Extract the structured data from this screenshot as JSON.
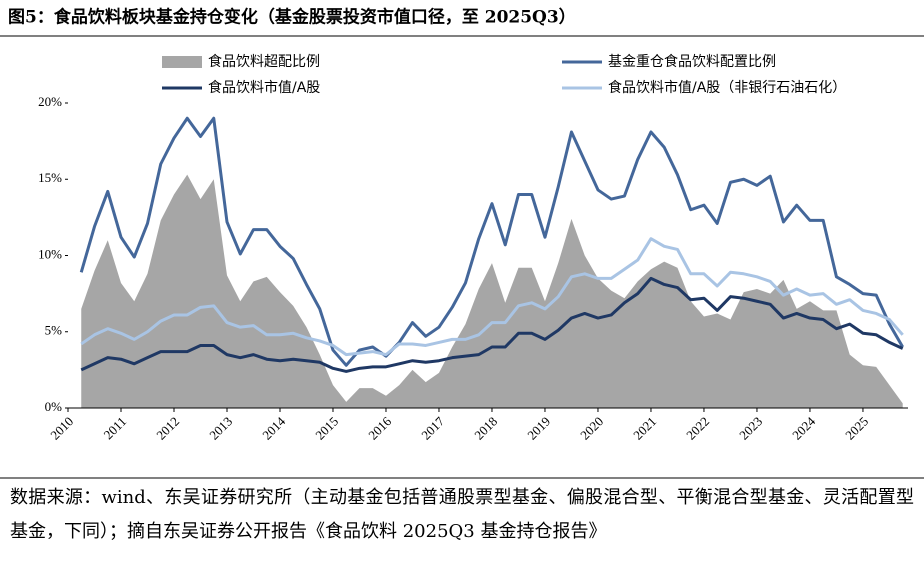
{
  "chart_data": {
    "type": "area-line",
    "title": "图5：食品饮料板块基金持仓变化（基金股票投资市值口径，至 2025Q3）",
    "note": "数据来源：wind、东吴证券研究所（主动基金包括普通股票型基金、偏股混合型、平衡混合型基金、灵活配置型基金，下同）；摘自东吴证券公开报告《食品饮料 2025Q3 基金持仓报告》",
    "x": [
      2010.25,
      2010.5,
      2010.75,
      2011,
      2011.25,
      2011.5,
      2011.75,
      2012,
      2012.25,
      2012.5,
      2012.75,
      2013,
      2013.25,
      2013.5,
      2013.75,
      2014,
      2014.25,
      2014.5,
      2014.75,
      2015,
      2015.25,
      2015.5,
      2015.75,
      2016,
      2016.25,
      2016.5,
      2016.75,
      2017,
      2017.25,
      2017.5,
      2017.75,
      2018,
      2018.25,
      2018.5,
      2018.75,
      2019,
      2019.25,
      2019.5,
      2019.75,
      2020,
      2020.25,
      2020.5,
      2020.75,
      2021,
      2021.25,
      2021.5,
      2021.75,
      2022,
      2022.25,
      2022.5,
      2022.75,
      2023,
      2023.25,
      2023.5,
      2023.75,
      2024,
      2024.25,
      2024.5,
      2024.75,
      2025,
      2025.25,
      2025.5,
      2025.75
    ],
    "xlim": [
      2010,
      2025.85
    ],
    "xticks": [
      2010,
      2011,
      2012,
      2013,
      2014,
      2015,
      2016,
      2017,
      2018,
      2019,
      2020,
      2021,
      2022,
      2023,
      2024,
      2025
    ],
    "ylim": [
      0,
      20
    ],
    "yticks": [
      {
        "value": 0,
        "label": "0%"
      },
      {
        "value": 5,
        "label": "5%"
      },
      {
        "value": 10,
        "label": "10%"
      },
      {
        "value": 15,
        "label": "15%"
      },
      {
        "value": 20,
        "label": "20%"
      }
    ],
    "grid": false,
    "series": [
      {
        "name": "食品饮料超配比例",
        "kind": "area",
        "color": "#a6a6a6",
        "values": [
          6.5,
          9,
          11,
          8.2,
          7.0,
          8.8,
          12.3,
          14,
          15.3,
          13.7,
          15,
          8.7,
          7,
          8.3,
          8.6,
          7.6,
          6.7,
          5.3,
          3.5,
          1.5,
          0.4,
          1.3,
          1.3,
          0.8,
          1.5,
          2.5,
          1.7,
          2.3,
          4.0,
          5.5,
          7.8,
          9.5,
          6.9,
          9.2,
          9.2,
          7,
          9.5,
          12.4,
          10,
          8.5,
          7.7,
          7.2,
          8.3,
          9.1,
          9.6,
          9.2,
          7,
          6,
          6.2,
          5.8,
          7.6,
          7.8,
          7.5,
          8.4,
          6.5,
          7,
          6.4,
          6.4,
          3.5,
          2.8,
          2.7,
          1.5,
          0.3
        ]
      },
      {
        "name": "基金重仓食品饮料配置比例",
        "kind": "line",
        "color": "#44679a",
        "values": [
          8.9,
          11.9,
          14.2,
          11.2,
          9.9,
          12.1,
          16,
          17.7,
          19,
          17.8,
          19,
          12.2,
          10.1,
          11.7,
          11.7,
          10.6,
          9.8,
          8.1,
          6.5,
          3.8,
          2.8,
          3.8,
          4.0,
          3.4,
          4.3,
          5.6,
          4.7,
          5.3,
          6.6,
          8.2,
          11.1,
          13.4,
          10.7,
          14,
          14,
          11.2,
          14.5,
          18.1,
          16.2,
          14.3,
          13.7,
          13.9,
          16.3,
          18.1,
          17.1,
          15.3,
          13,
          13.3,
          12.1,
          14.8,
          15,
          14.6,
          15.2,
          12.2,
          13.3,
          12.3,
          12.3,
          8.6,
          8.1,
          7.5,
          7.4,
          5.5,
          4.0
        ]
      },
      {
        "name": "食品饮料市值/A股",
        "kind": "line",
        "color": "#1f3864",
        "values": [
          2.5,
          2.9,
          3.3,
          3.2,
          2.9,
          3.3,
          3.7,
          3.7,
          3.7,
          4.1,
          4.1,
          3.5,
          3.3,
          3.5,
          3.2,
          3.1,
          3.2,
          3.1,
          3.0,
          2.6,
          2.4,
          2.6,
          2.7,
          2.7,
          2.9,
          3.1,
          3.0,
          3.1,
          3.3,
          3.4,
          3.5,
          4.0,
          4.0,
          4.9,
          4.9,
          4.5,
          5.1,
          5.9,
          6.2,
          5.9,
          6.1,
          6.9,
          7.5,
          8.5,
          8.1,
          7.9,
          7.1,
          7.2,
          6.4,
          7.3,
          7.2,
          7.0,
          6.8,
          5.9,
          6.2,
          5.9,
          5.8,
          5.2,
          5.5,
          4.9,
          4.8,
          4.3,
          3.9
        ]
      },
      {
        "name": "食品饮料市值/A股（非银行石油石化）",
        "kind": "line",
        "color": "#a9c4e4",
        "values": [
          4.2,
          4.8,
          5.2,
          4.9,
          4.5,
          5.0,
          5.7,
          6.1,
          6.1,
          6.6,
          6.7,
          5.6,
          5.3,
          5.4,
          4.8,
          4.8,
          4.9,
          4.6,
          4.4,
          4.1,
          3.5,
          3.6,
          3.7,
          3.5,
          4.2,
          4.2,
          4.1,
          4.3,
          4.5,
          4.5,
          4.8,
          5.6,
          5.6,
          6.7,
          6.9,
          6.5,
          7.3,
          8.6,
          8.8,
          8.5,
          8.5,
          9.1,
          9.7,
          11.1,
          10.6,
          10.4,
          8.8,
          8.8,
          8.0,
          8.9,
          8.8,
          8.6,
          8.3,
          7.4,
          7.8,
          7.4,
          7.5,
          6.8,
          7.1,
          6.4,
          6.2,
          5.8,
          4.8
        ]
      }
    ]
  }
}
